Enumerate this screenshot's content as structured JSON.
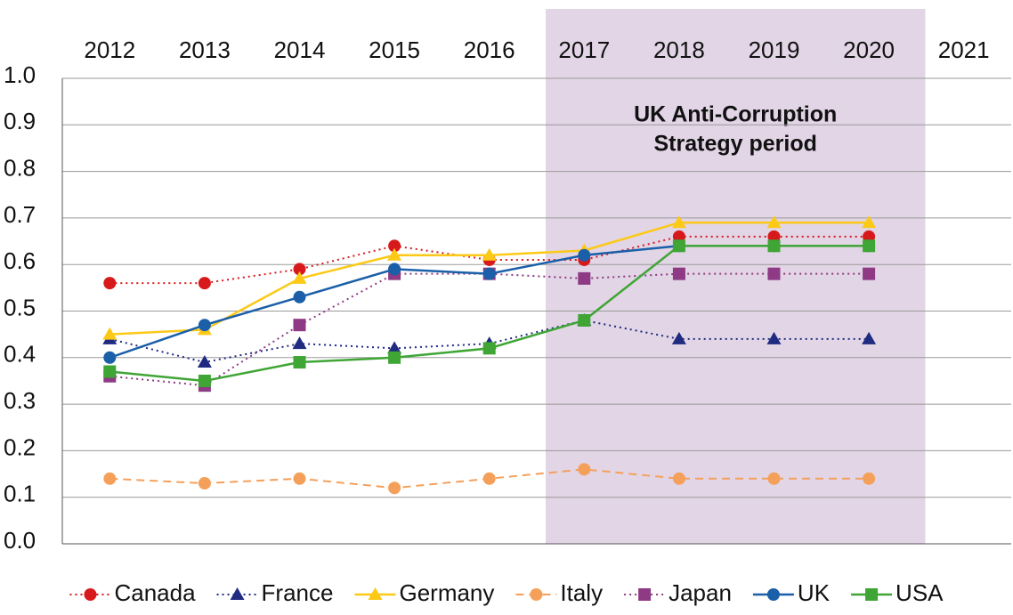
{
  "chart_data": {
    "type": "line",
    "categories": [
      "2012",
      "2013",
      "2014",
      "2015",
      "2016",
      "2017",
      "2018",
      "2019",
      "2020",
      "2021"
    ],
    "ylim": [
      0,
      1
    ],
    "yticks": [
      {
        "value": 0,
        "label": "0.0"
      },
      0.1,
      0.2,
      0.3,
      0.4,
      0.5,
      0.6,
      0.7,
      0.8,
      0.9,
      {
        "value": 1,
        "label": "1.0"
      }
    ],
    "grid": true,
    "legend": "bottom",
    "shade": {
      "from": "2017",
      "to": "2020",
      "color": "#e2d5e6",
      "label": [
        "UK Anti-Corruption",
        "Strategy period"
      ]
    },
    "series": [
      {
        "name": "Canada",
        "color": "#d7191c",
        "dash": "dotted",
        "marker": "circle",
        "values": [
          0.56,
          0.56,
          0.59,
          0.64,
          0.61,
          0.61,
          0.66,
          0.66,
          0.66,
          null
        ]
      },
      {
        "name": "France",
        "color": "#1f2a80",
        "dash": "dotted",
        "marker": "triangle",
        "values": [
          0.44,
          0.39,
          0.43,
          0.42,
          0.43,
          0.48,
          0.44,
          0.44,
          0.44,
          null
        ]
      },
      {
        "name": "Germany",
        "color": "#fcc917",
        "dash": "solid",
        "marker": "triangle",
        "values": [
          0.45,
          0.46,
          0.57,
          0.62,
          0.62,
          0.63,
          0.69,
          0.69,
          0.69,
          null
        ]
      },
      {
        "name": "Italy",
        "color": "#f5a05a",
        "dash": "dashed",
        "marker": "circle",
        "values": [
          0.14,
          0.13,
          0.14,
          0.12,
          0.14,
          0.16,
          0.14,
          0.14,
          0.14,
          null
        ]
      },
      {
        "name": "Japan",
        "color": "#8e3a84",
        "dash": "dotted",
        "marker": "square",
        "values": [
          0.36,
          0.34,
          0.47,
          0.58,
          0.58,
          0.57,
          0.58,
          0.58,
          0.58,
          null
        ]
      },
      {
        "name": "UK",
        "color": "#1a5fa8",
        "dash": "solid",
        "marker": "circle",
        "values": [
          0.4,
          0.47,
          0.53,
          0.59,
          0.58,
          0.62,
          0.64,
          0.64,
          0.64,
          null
        ]
      },
      {
        "name": "USA",
        "color": "#3fa535",
        "dash": "solid",
        "marker": "square",
        "values": [
          0.37,
          0.35,
          0.39,
          0.4,
          0.42,
          0.48,
          0.64,
          0.64,
          0.64,
          null
        ]
      }
    ]
  }
}
